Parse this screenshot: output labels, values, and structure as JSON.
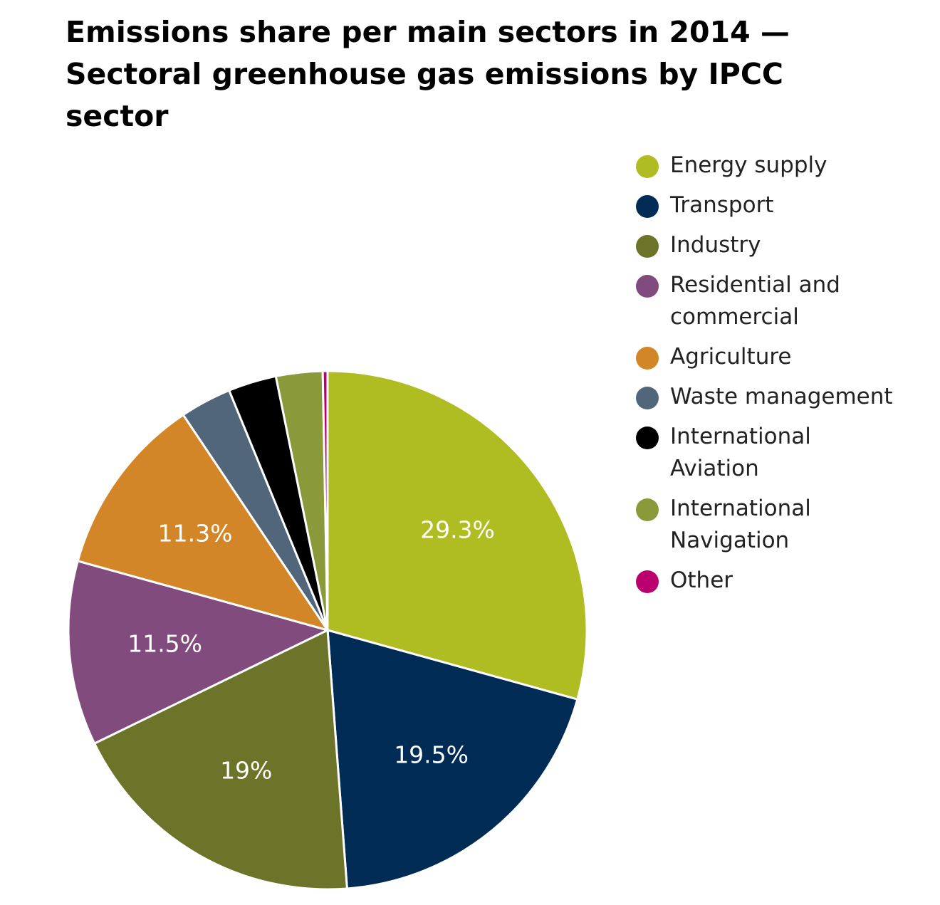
{
  "title": {
    "line1": "Emissions share per main sectors in 2014 —",
    "line2": "Sectoral greenhouse gas emissions by IPCC",
    "line3": "sector"
  },
  "chart_data": {
    "type": "pie",
    "title": "Emissions share per main sectors in 2014 — Sectoral greenhouse gas emissions by IPCC sector",
    "legend_position": "right",
    "start_angle_deg": 0,
    "direction": "clockwise",
    "slices": [
      {
        "name": "Energy supply",
        "value": 29.3,
        "label": "29.3%",
        "color": "#afbd22"
      },
      {
        "name": "Transport",
        "value": 19.5,
        "label": "19.5%",
        "color": "#002b55"
      },
      {
        "name": "Industry",
        "value": 19.0,
        "label": "19%",
        "color": "#6b7428"
      },
      {
        "name": "Residential and commercial",
        "value": 11.5,
        "label": "11.5%",
        "color": "#824b7e"
      },
      {
        "name": "Agriculture",
        "value": 11.3,
        "label": "11.3%",
        "color": "#d38627"
      },
      {
        "name": "Waste management",
        "value": 3.2,
        "label": "",
        "color": "#51667a"
      },
      {
        "name": "International Aviation",
        "value": 3.0,
        "label": "",
        "color": "#000000"
      },
      {
        "name": "International Navigation",
        "value": 2.9,
        "label": "",
        "color": "#8a9a3b"
      },
      {
        "name": "Other",
        "value": 0.3,
        "label": "",
        "color": "#b9006e"
      }
    ]
  },
  "legend": {
    "items": [
      {
        "lines": [
          "Energy supply"
        ],
        "color": "#afbd22"
      },
      {
        "lines": [
          "Transport"
        ],
        "color": "#002b55"
      },
      {
        "lines": [
          "Industry"
        ],
        "color": "#6b7428"
      },
      {
        "lines": [
          "Residential and",
          "commercial"
        ],
        "color": "#824b7e"
      },
      {
        "lines": [
          "Agriculture"
        ],
        "color": "#d38627"
      },
      {
        "lines": [
          "Waste management"
        ],
        "color": "#51667a"
      },
      {
        "lines": [
          "International",
          "Aviation"
        ],
        "color": "#000000"
      },
      {
        "lines": [
          "International",
          "Navigation"
        ],
        "color": "#8a9a3b"
      },
      {
        "lines": [
          "Other"
        ],
        "color": "#b9006e"
      }
    ]
  }
}
